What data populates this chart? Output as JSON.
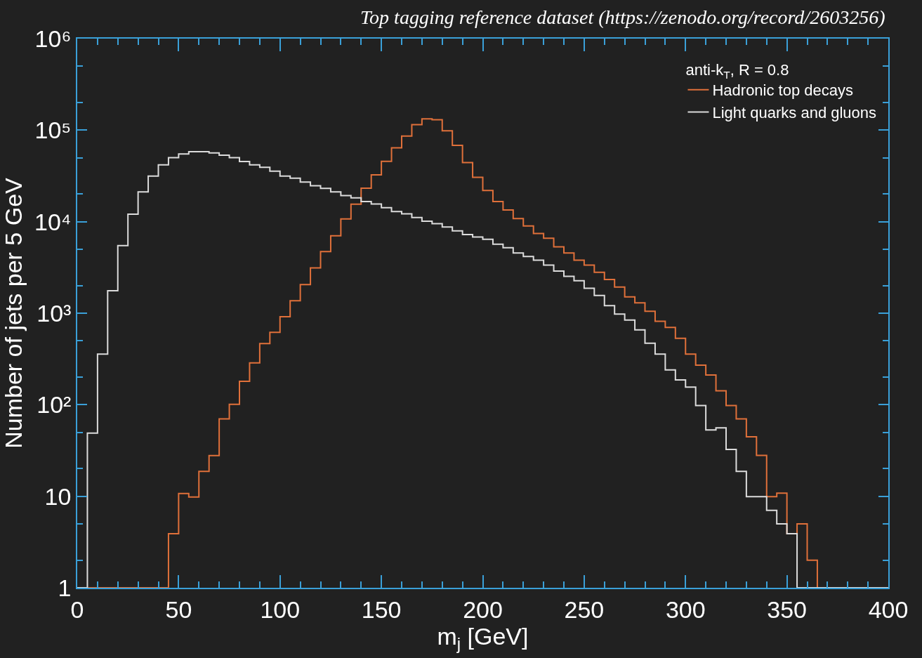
{
  "chart_data": {
    "type": "histogram",
    "title": "Top tagging reference dataset (https://zenodo.org/record/2603256)",
    "xlabel": "m$_{j}$ [GeV]",
    "ylabel": "Number of jets per 5 GeV",
    "legend_title": "anti-k$_{T}$, R = 0.8",
    "bins": [
      0,
      5,
      10,
      15,
      20,
      25,
      30,
      35,
      40,
      45,
      50,
      55,
      60,
      65,
      70,
      75,
      80,
      85,
      90,
      95,
      100,
      105,
      110,
      115,
      120,
      125,
      130,
      135,
      140,
      145,
      150,
      155,
      160,
      165,
      170,
      175,
      180,
      185,
      190,
      195,
      200,
      205,
      210,
      215,
      220,
      225,
      230,
      235,
      240,
      245,
      250,
      255,
      260,
      265,
      270,
      275,
      280,
      285,
      290,
      295,
      300,
      305,
      310,
      315,
      320,
      325,
      330,
      335,
      340,
      345,
      350,
      355,
      360,
      365,
      370,
      375,
      380,
      385,
      390,
      395,
      400
    ],
    "series": [
      {
        "name": "Hadronic top decays",
        "color": "#e0703a",
        "values": [
          null,
          null,
          null,
          null,
          null,
          null,
          null,
          null,
          null,
          3.9,
          10.7,
          9.8,
          18.7,
          27.8,
          70,
          101,
          180,
          286,
          466,
          619,
          917,
          1370,
          2050,
          3130,
          4720,
          7000,
          10700,
          15500,
          23200,
          32500,
          45600,
          64000,
          86300,
          115000,
          133000,
          130000,
          98600,
          68100,
          44200,
          30500,
          21900,
          16600,
          13400,
          10800,
          8970,
          7430,
          6580,
          5300,
          4550,
          3790,
          3350,
          2800,
          2330,
          1930,
          1510,
          1300,
          1050,
          817,
          700,
          531,
          357,
          271,
          211,
          142,
          98,
          70,
          44.6,
          28,
          9.9,
          10.8,
          3.9,
          5.0,
          2.0,
          null,
          null,
          null,
          null,
          null,
          null,
          null
        ]
      },
      {
        "name": "Light quarks and gluons",
        "color": "#dcdcdc",
        "values": [
          null,
          49,
          358,
          1760,
          5470,
          12100,
          21200,
          31500,
          41800,
          50100,
          55000,
          58200,
          58200,
          56300,
          53300,
          50100,
          45500,
          41800,
          39300,
          35700,
          31500,
          29800,
          27100,
          24700,
          23100,
          21200,
          19300,
          18200,
          16600,
          15600,
          14200,
          12900,
          12200,
          11100,
          10100,
          9500,
          8730,
          7940,
          7220,
          6810,
          6410,
          5680,
          5200,
          4550,
          4170,
          3790,
          3350,
          2890,
          2530,
          2260,
          1870,
          1560,
          1210,
          979,
          840,
          658,
          470,
          357,
          240,
          187,
          156,
          98,
          53,
          56,
          32.5,
          18.7,
          9.9,
          9.9,
          7.0,
          5.0,
          3.9,
          null,
          null,
          null,
          null,
          null,
          null,
          null,
          null,
          null
        ]
      }
    ],
    "xlim": [
      0,
      400
    ],
    "xticks": [
      0,
      50,
      100,
      150,
      200,
      250,
      300,
      350,
      400
    ],
    "ylim": [
      1,
      1000000
    ],
    "log": true,
    "yticks": [
      1,
      10,
      {
        "value": 100,
        "label": "10²"
      },
      {
        "value": 1000,
        "label": "10³"
      },
      {
        "value": 10000,
        "label": "10⁴"
      },
      {
        "value": 100000,
        "label": "10⁵"
      },
      {
        "value": 1000000,
        "label": "10⁶"
      }
    ],
    "grid": false,
    "legend": "top right",
    "line_style": "solid",
    "marker": "none"
  }
}
